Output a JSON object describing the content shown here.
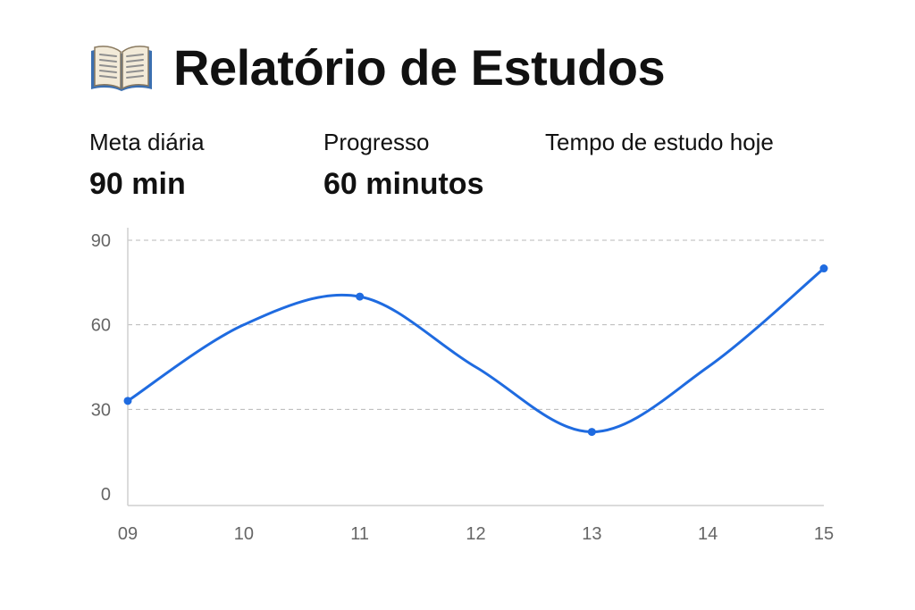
{
  "header": {
    "icon": "open-book-icon",
    "title": "Relatório de Estudos"
  },
  "stats": {
    "meta": {
      "label": "Meta diária",
      "value": "90 min"
    },
    "progress": {
      "label": "Progresso",
      "value": "60 minutos"
    },
    "tempo": {
      "label": "Tempo de estudo hoje"
    }
  },
  "colors": {
    "line": "#1f6be0",
    "grid": "#b8b8b8",
    "axis": "#cfcfcf",
    "tick": "#666666"
  },
  "chart_data": {
    "type": "line",
    "title": "",
    "xlabel": "",
    "ylabel": "",
    "x": [
      "09",
      "10",
      "11",
      "12",
      "13",
      "14",
      "15"
    ],
    "ylim": [
      0,
      90
    ],
    "yticks": [
      0,
      30,
      60,
      90
    ],
    "grid": true,
    "series": [
      {
        "values": [
          33,
          60,
          70,
          45,
          22,
          45,
          80
        ],
        "markers": [
          0,
          2,
          4,
          6
        ]
      }
    ]
  }
}
